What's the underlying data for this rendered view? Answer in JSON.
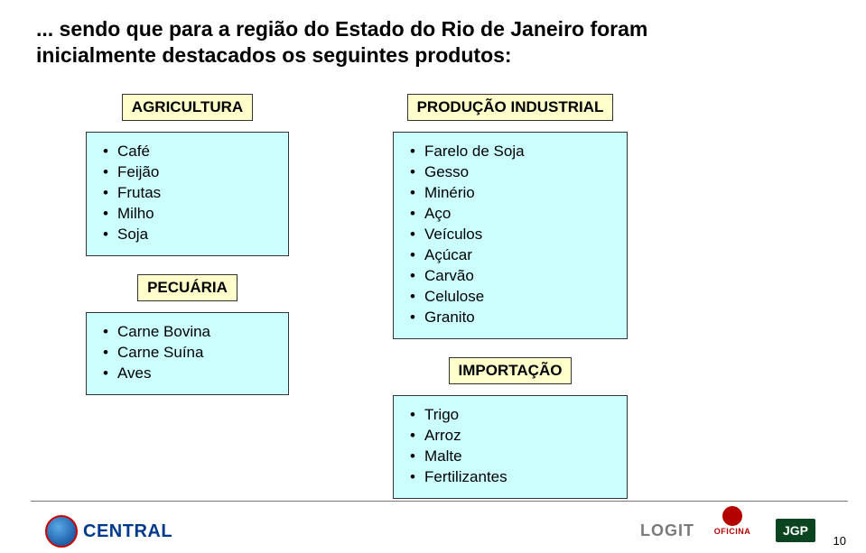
{
  "title_line1": "... sendo que para a região do Estado do Rio de Janeiro foram",
  "title_line2": "inicialmente destacados os seguintes produtos:",
  "left": {
    "agricultura": {
      "label": "AGRICULTURA",
      "items": [
        "Café",
        "Feijão",
        "Frutas",
        "Milho",
        "Soja"
      ]
    },
    "pecuaria": {
      "label": "PECUÁRIA",
      "items": [
        "Carne Bovina",
        "Carne Suína",
        "Aves"
      ]
    }
  },
  "right": {
    "industrial": {
      "label": "PRODUÇÃO INDUSTRIAL",
      "items": [
        "Farelo de Soja",
        "Gesso",
        "Minério",
        "Aço",
        "Veículos",
        "Açúcar",
        "Carvão",
        "Celulose",
        "Granito"
      ]
    },
    "importacao": {
      "label": "IMPORTAÇÃO",
      "items": [
        "Trigo",
        "Arroz",
        "Malte",
        "Fertilizantes"
      ]
    }
  },
  "footer": {
    "central": "CENTRAL",
    "logit": "LOGIT",
    "oficina1": "OFICINA",
    "jgp": "JGP",
    "pagenum": "10"
  },
  "colors": {
    "label_bg": "#ffffcc",
    "box_bg": "#ccffff",
    "border": "#333333",
    "title": "#000000"
  }
}
